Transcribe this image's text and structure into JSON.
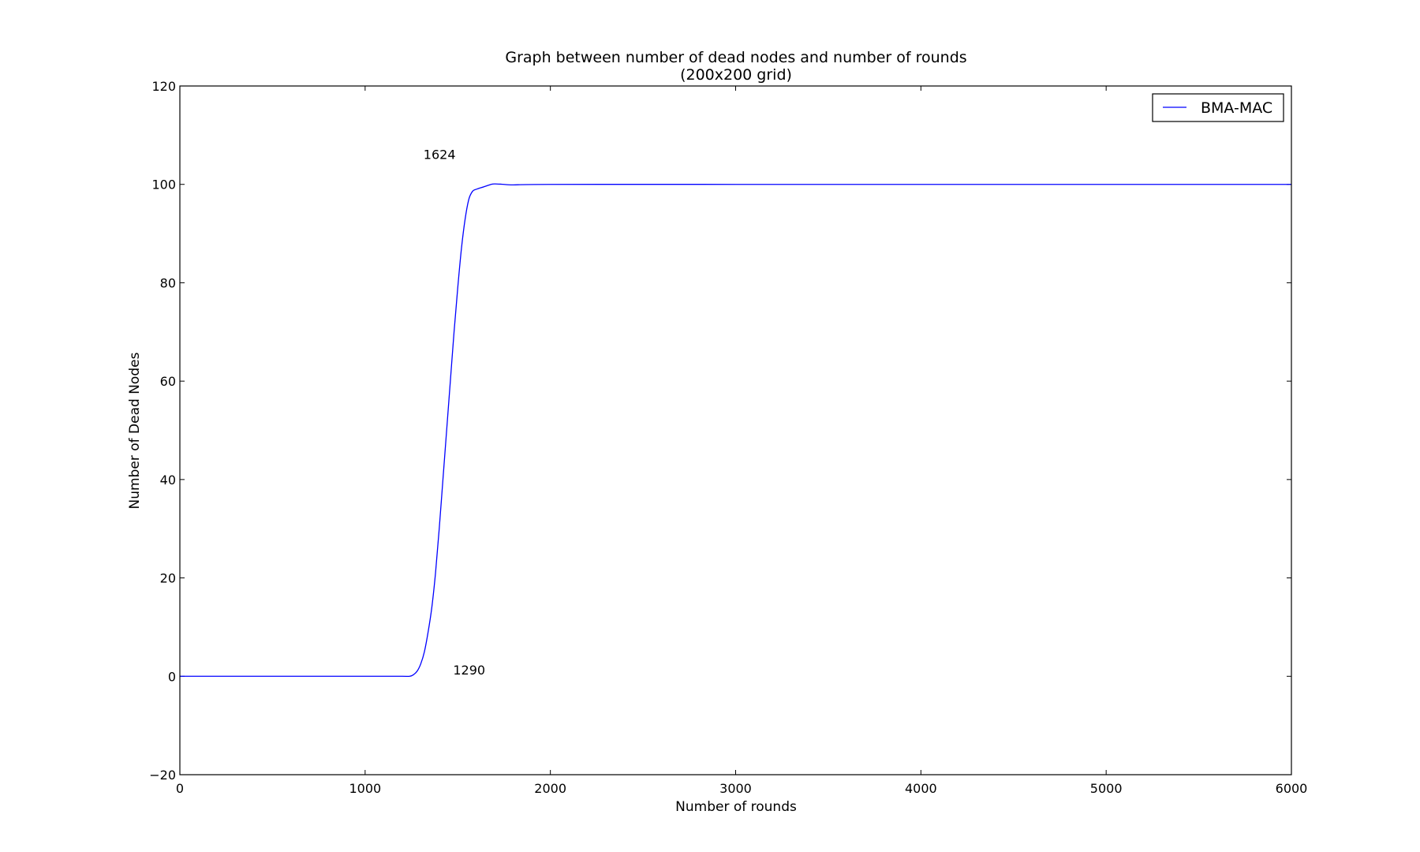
{
  "chart_data": {
    "type": "line",
    "title": "Graph between number of dead nodes and number of rounds",
    "subtitle": "(200x200 grid)",
    "xlabel": "Number of rounds",
    "ylabel": "Number of Dead Nodes",
    "xlim": [
      0,
      6000
    ],
    "ylim": [
      -20,
      120
    ],
    "xticks": [
      0,
      1000,
      2000,
      3000,
      4000,
      5000,
      6000
    ],
    "yticks": [
      -20,
      0,
      20,
      40,
      60,
      80,
      100,
      120
    ],
    "xtick_labels": [
      "0",
      "1000",
      "2000",
      "3000",
      "4000",
      "5000",
      "6000"
    ],
    "ytick_labels": [
      "−20",
      "0",
      "20",
      "40",
      "60",
      "80",
      "100",
      "120"
    ],
    "grid": false,
    "legend_position": "top-right",
    "series": [
      {
        "name": "BMA-MAC",
        "color": "#0000ff",
        "x": [
          0,
          1000,
          1200,
          1240,
          1260,
          1280,
          1300,
          1320,
          1340,
          1360,
          1380,
          1400,
          1420,
          1440,
          1460,
          1480,
          1500,
          1520,
          1540,
          1560,
          1580,
          1600,
          1640,
          1680,
          1700,
          1750,
          1800,
          2000,
          3000,
          4000,
          5000,
          6000
        ],
        "y": [
          0,
          0,
          0,
          0,
          0.3,
          1,
          2.5,
          5,
          9,
          14,
          21,
          30,
          40,
          50,
          60,
          70,
          79,
          87,
          93,
          97,
          98.6,
          99,
          99.5,
          100,
          100.1,
          100,
          99.9,
          100,
          100,
          100,
          100,
          100
        ]
      }
    ],
    "annotations": [
      {
        "text": "1624",
        "x": 1315,
        "y": 105.2
      },
      {
        "text": "1290",
        "x": 1475,
        "y": 0.4
      }
    ]
  }
}
